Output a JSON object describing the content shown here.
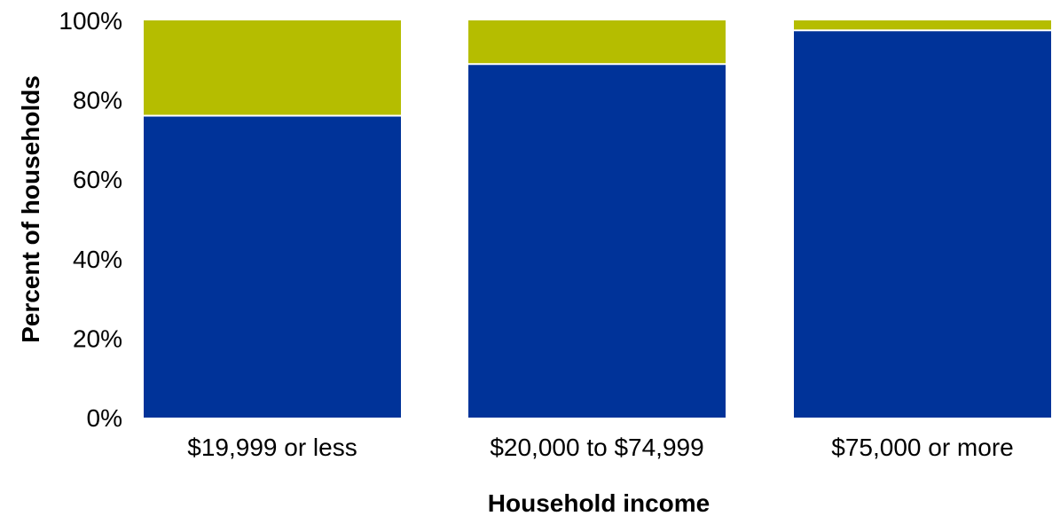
{
  "chart_data": {
    "type": "bar",
    "stacked": true,
    "title": "",
    "xlabel": "Household income",
    "ylabel": "Percent of households",
    "ylim": [
      0,
      100
    ],
    "y_ticks": [
      0,
      20,
      40,
      60,
      80,
      100
    ],
    "y_tick_format": "{v}%",
    "grid": false,
    "legend": "none",
    "categories": [
      "$19,999 or less",
      "$20,000 to $74,999",
      "$75,000 or more"
    ],
    "series": [
      {
        "color": "#003399",
        "values": [
          76,
          89,
          97.5
        ]
      },
      {
        "color": "#b5bd00",
        "values": [
          24,
          11,
          2.5
        ]
      }
    ]
  }
}
